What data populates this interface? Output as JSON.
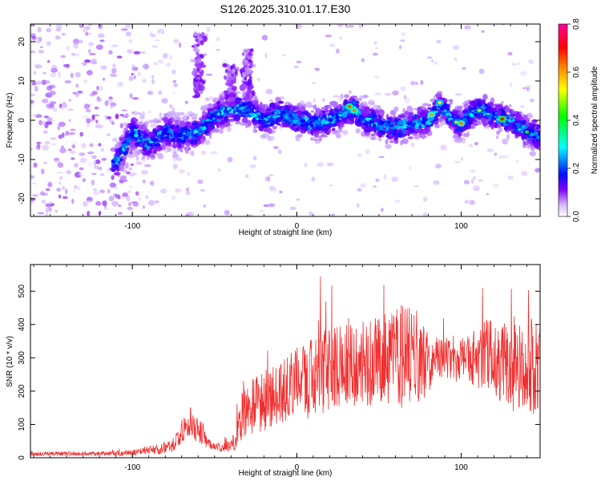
{
  "chart_data": [
    {
      "type": "heatmap",
      "title": "S126.2025.310.01.17.E30",
      "xlabel": "Height of straight line (km)",
      "ylabel": "Frequency (Hz)",
      "xlim": [
        -162,
        148
      ],
      "ylim": [
        -24.5,
        24.5
      ],
      "xticks": [
        -100,
        0,
        100
      ],
      "yticks": [
        -20,
        -10,
        0,
        10,
        20
      ],
      "colorbar": {
        "label": "Normalized spectral amplitude",
        "range": [
          0.0,
          0.8
        ],
        "ticks": [
          "0.0",
          "0.2",
          "0.4",
          "0.6",
          "0.8"
        ],
        "colors": [
          "#ffffff",
          "#c8a0ff",
          "#8000ff",
          "#0000ff",
          "#00ffff",
          "#00ff00",
          "#ffff00",
          "#ff8000",
          "#ff0000",
          "#ff00a0"
        ]
      },
      "ridge": {
        "x": [
          -110,
          -100,
          -90,
          -80,
          -70,
          -60,
          -50,
          -40,
          -30,
          -20,
          -10,
          0,
          10,
          20,
          30,
          35,
          40,
          50,
          60,
          70,
          80,
          88,
          95,
          100,
          110,
          120,
          130,
          140,
          148
        ],
        "y": [
          -11,
          -3,
          -6,
          -3,
          -4,
          -3,
          1,
          3,
          3,
          0,
          2,
          0,
          -1,
          0,
          2,
          3,
          0,
          -1,
          -2,
          -1,
          0,
          4,
          0,
          -1,
          3,
          1,
          0,
          -3,
          -4
        ]
      },
      "strong_spots": [
        {
          "x": 32,
          "y": 3.5,
          "v": 0.65
        },
        {
          "x": 35,
          "y": 2.5,
          "v": 0.62
        },
        {
          "x": 82,
          "y": 1.5,
          "v": 0.6
        },
        {
          "x": 87,
          "y": 4.5,
          "v": 0.55
        },
        {
          "x": 97,
          "y": -0.5,
          "v": 0.5
        },
        {
          "x": 100,
          "y": -0.8,
          "v": 0.62
        },
        {
          "x": 111,
          "y": 2.5,
          "v": 0.5
        },
        {
          "x": 125,
          "y": 0.3,
          "v": 0.7
        },
        {
          "x": 140,
          "y": -3.0,
          "v": 0.45
        }
      ]
    },
    {
      "type": "line",
      "xlabel": "Height of straight line (km)",
      "ylabel": "SNR (10 * v/v)",
      "xlim": [
        -162,
        148
      ],
      "ylim": [
        0,
        580
      ],
      "xticks": [
        -100,
        0,
        100
      ],
      "yticks": [
        0,
        100,
        200,
        300,
        400,
        500
      ],
      "color": "#f03030",
      "series": [
        {
          "name": "SNR",
          "x": [
            -162,
            -140,
            -120,
            -105,
            -95,
            -90,
            -85,
            -80,
            -75,
            -70,
            -68,
            -65,
            -62,
            -60,
            -57,
            -55,
            -52,
            -50,
            -45,
            -40,
            -37,
            -35,
            -30,
            -25,
            -20,
            -15,
            -10,
            -5,
            0,
            5,
            10,
            15,
            20,
            25,
            30,
            35,
            40,
            45,
            50,
            55,
            60,
            65,
            70,
            75,
            80,
            85,
            90,
            95,
            100,
            105,
            110,
            115,
            120,
            125,
            130,
            135,
            140,
            145,
            148
          ],
          "mean": [
            12,
            12,
            12,
            14,
            18,
            22,
            25,
            30,
            40,
            80,
            90,
            110,
            95,
            85,
            70,
            55,
            40,
            35,
            30,
            35,
            60,
            110,
            150,
            160,
            170,
            180,
            190,
            210,
            220,
            230,
            240,
            255,
            265,
            270,
            285,
            290,
            280,
            285,
            290,
            300,
            300,
            305,
            300,
            290,
            290,
            310,
            300,
            295,
            300,
            300,
            295,
            305,
            310,
            290,
            280,
            270,
            275,
            270,
            265
          ],
          "spread": [
            6,
            6,
            6,
            8,
            10,
            12,
            15,
            18,
            22,
            40,
            40,
            45,
            45,
            40,
            35,
            25,
            15,
            10,
            12,
            20,
            40,
            70,
            80,
            85,
            90,
            90,
            95,
            100,
            110,
            115,
            120,
            125,
            130,
            130,
            135,
            135,
            130,
            130,
            140,
            140,
            150,
            160,
            150,
            120,
            100,
            60,
            70,
            70,
            70,
            80,
            90,
            110,
            120,
            130,
            140,
            130,
            140,
            150,
            150
          ]
        }
      ]
    }
  ]
}
